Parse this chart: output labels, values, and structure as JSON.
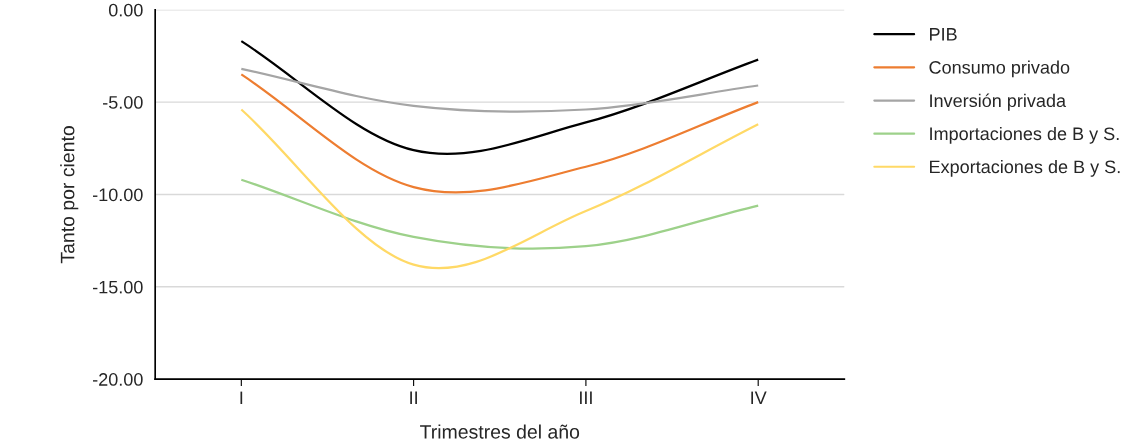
{
  "chart_data": {
    "type": "line",
    "xlabel": "Trimestres del año",
    "ylabel": "Tanto por ciento",
    "categories": [
      "I",
      "II",
      "III",
      "IV"
    ],
    "series": [
      {
        "name": "PIB",
        "color": "#000000",
        "values": [
          -1.7,
          -7.6,
          -6.1,
          -2.7
        ]
      },
      {
        "name": "Consumo privado",
        "color": "#ed7d31",
        "values": [
          -3.5,
          -9.6,
          -8.5,
          -5.0
        ]
      },
      {
        "name": "Inversión privada",
        "color": "#a5a5a5",
        "values": [
          -3.2,
          -5.2,
          -5.4,
          -4.1
        ]
      },
      {
        "name": "Importaciones de B y S.",
        "color": "#9dd18a",
        "values": [
          -9.2,
          -12.3,
          -12.8,
          -10.6
        ]
      },
      {
        "name": "Exportaciones de B y S.",
        "color": "#ffd966",
        "values": [
          -5.4,
          -13.8,
          -10.9,
          -6.2
        ]
      }
    ],
    "ylim": [
      -20,
      0
    ],
    "yticks": [
      {
        "value": -20,
        "label": "-20.00"
      },
      {
        "value": -15,
        "label": "-15.00"
      },
      {
        "value": -10,
        "label": "-10.00"
      },
      {
        "value": -5,
        "label": "-5.00"
      },
      {
        "value": 0,
        "label": "0.00"
      }
    ],
    "grid": "y",
    "legend": "right",
    "marker": "none",
    "line_style": "solid"
  }
}
